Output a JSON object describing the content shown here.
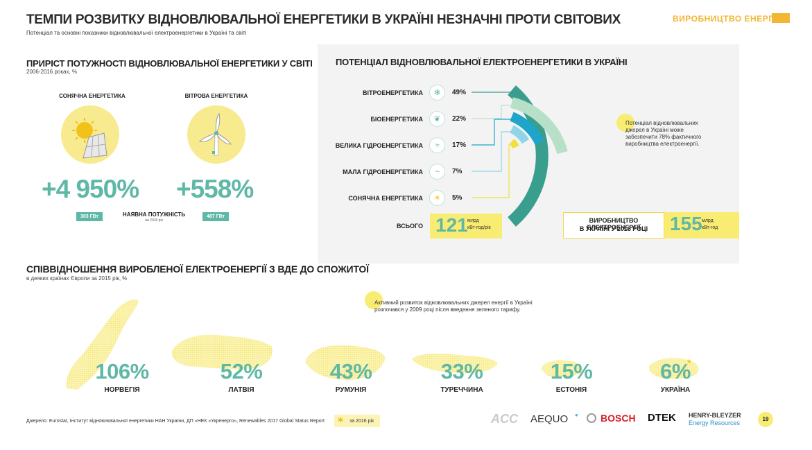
{
  "header": {
    "title": "ТЕМПИ РОЗВИТКУ ВІДНОВЛЮВАЛЬНОЇ ЕНЕРГЕТИКИ В УКРАЇНІ НЕЗНАЧНІ ПРОТИ СВІТОВИХ",
    "subtitle": "Потенціал та основні показники відновлювальної електроенергетики в Україні та світі",
    "section": "ВИРОБНИЦТВО ЕНЕРГІЇ"
  },
  "growth": {
    "title": "ПРИРІСТ ПОТУЖНОСТІ ВІДНОВЛЮВАЛЬНОЇ ЕНЕРГЕТИКИ У СВІТІ",
    "subtitle": "2006-2016 роках, %",
    "solar": {
      "label": "СОНЯЧНА ЕНЕРГЕТИКА",
      "value": "+4 950%",
      "capacity": "303 ГВт"
    },
    "wind": {
      "label": "ВІТРОВА ЕНЕРГЕТИКА",
      "value": "+558%",
      "capacity": "487 ГВт"
    },
    "capacity_label": "НАЯВНА ПОТУЖНІСТЬ",
    "capacity_sub": "на 2016 рік"
  },
  "potential": {
    "title": "ПОТЕНЦІАЛ ВІДНОВЛЮВАЛЬНОЇ ЕЛЕКТРОЕНЕРГЕТИКИ В УКРАЇНІ",
    "sources": [
      {
        "label": "ВІТРОЕНЕРГЕТИКА",
        "pct": "49%",
        "icon": "wind-icon",
        "color": "#3a9e8f"
      },
      {
        "label": "БІОЕНЕРГЕТИКА",
        "pct": "22%",
        "icon": "leaf-icon",
        "color": "#b8e0c8"
      },
      {
        "label": "ВЕЛИКА ГІДРОЕНЕРГЕТИКА",
        "pct": "17%",
        "icon": "wave-icon",
        "color": "#1ea5c9"
      },
      {
        "label": "МАЛА ГІДРОЕНЕРГЕТИКА",
        "pct": "7%",
        "icon": "drop-icon",
        "color": "#8fd4e8"
      },
      {
        "label": "СОНЯЧНА ЕНЕРГЕТИКА",
        "pct": "5%",
        "icon": "sun-icon",
        "color": "#f2df3b"
      }
    ],
    "total_label": "ВСЬОГО",
    "total_value": "121",
    "total_unit_1": "млрд",
    "total_unit_2": "кВт-год/рік",
    "note": "Потенціал відновлювальних джерел в Україні може забезпечити 78% фактичного виробництва електроенергії.",
    "production_label_1": "ВИРОБНИЦТВО ЕЛЕКТРОЕНЕРГІЇ",
    "production_label_2": "В УКРАЇНІ У 2016 РОЦІ",
    "production_value": "155",
    "production_unit_1": "млрд",
    "production_unit_2": "кВт-год"
  },
  "ratio": {
    "title": "СПІВВІДНОШЕННЯ ВИРОБЛЕНОЇ ЕЛЕКТРОЕНЕРГІЇ З ВДЕ ДО СПОЖИТОЇ",
    "subtitle": "в деяких країнах Європи за 2015 рік, %",
    "note": "Активний розвиток відновлювальних джерел енергії в Україні розпочався у 2009 році після введення зеленого тарифу.",
    "countries": [
      {
        "name": "НОРВЕГІЯ",
        "value": "106%"
      },
      {
        "name": "ЛАТВІЯ",
        "value": "52%"
      },
      {
        "name": "РУМУНІЯ",
        "value": "43%"
      },
      {
        "name": "ТУРЕЧЧИНА",
        "value": "33%"
      },
      {
        "name": "ЕСТОНІЯ",
        "value": "15%"
      },
      {
        "name": "УКРАЇНА",
        "value": "6%"
      }
    ],
    "asterisk": "*"
  },
  "footer": {
    "source": "Джерело: Eurostat, Інститут відновлювальної енергетики НАН України, ДП «НЕК «Укренерго», Renewables 2017 Global Status Report",
    "legend": "за 2016 рік",
    "page": "19",
    "logos": [
      "ACC",
      "AEQUO",
      "BOSCH",
      "DTEK",
      "HENRY-BLEYZER",
      "Energy Resources"
    ]
  },
  "colors": {
    "accent": "#5fb8a6",
    "yellow": "#f9ec72",
    "orange": "#f2b632"
  }
}
